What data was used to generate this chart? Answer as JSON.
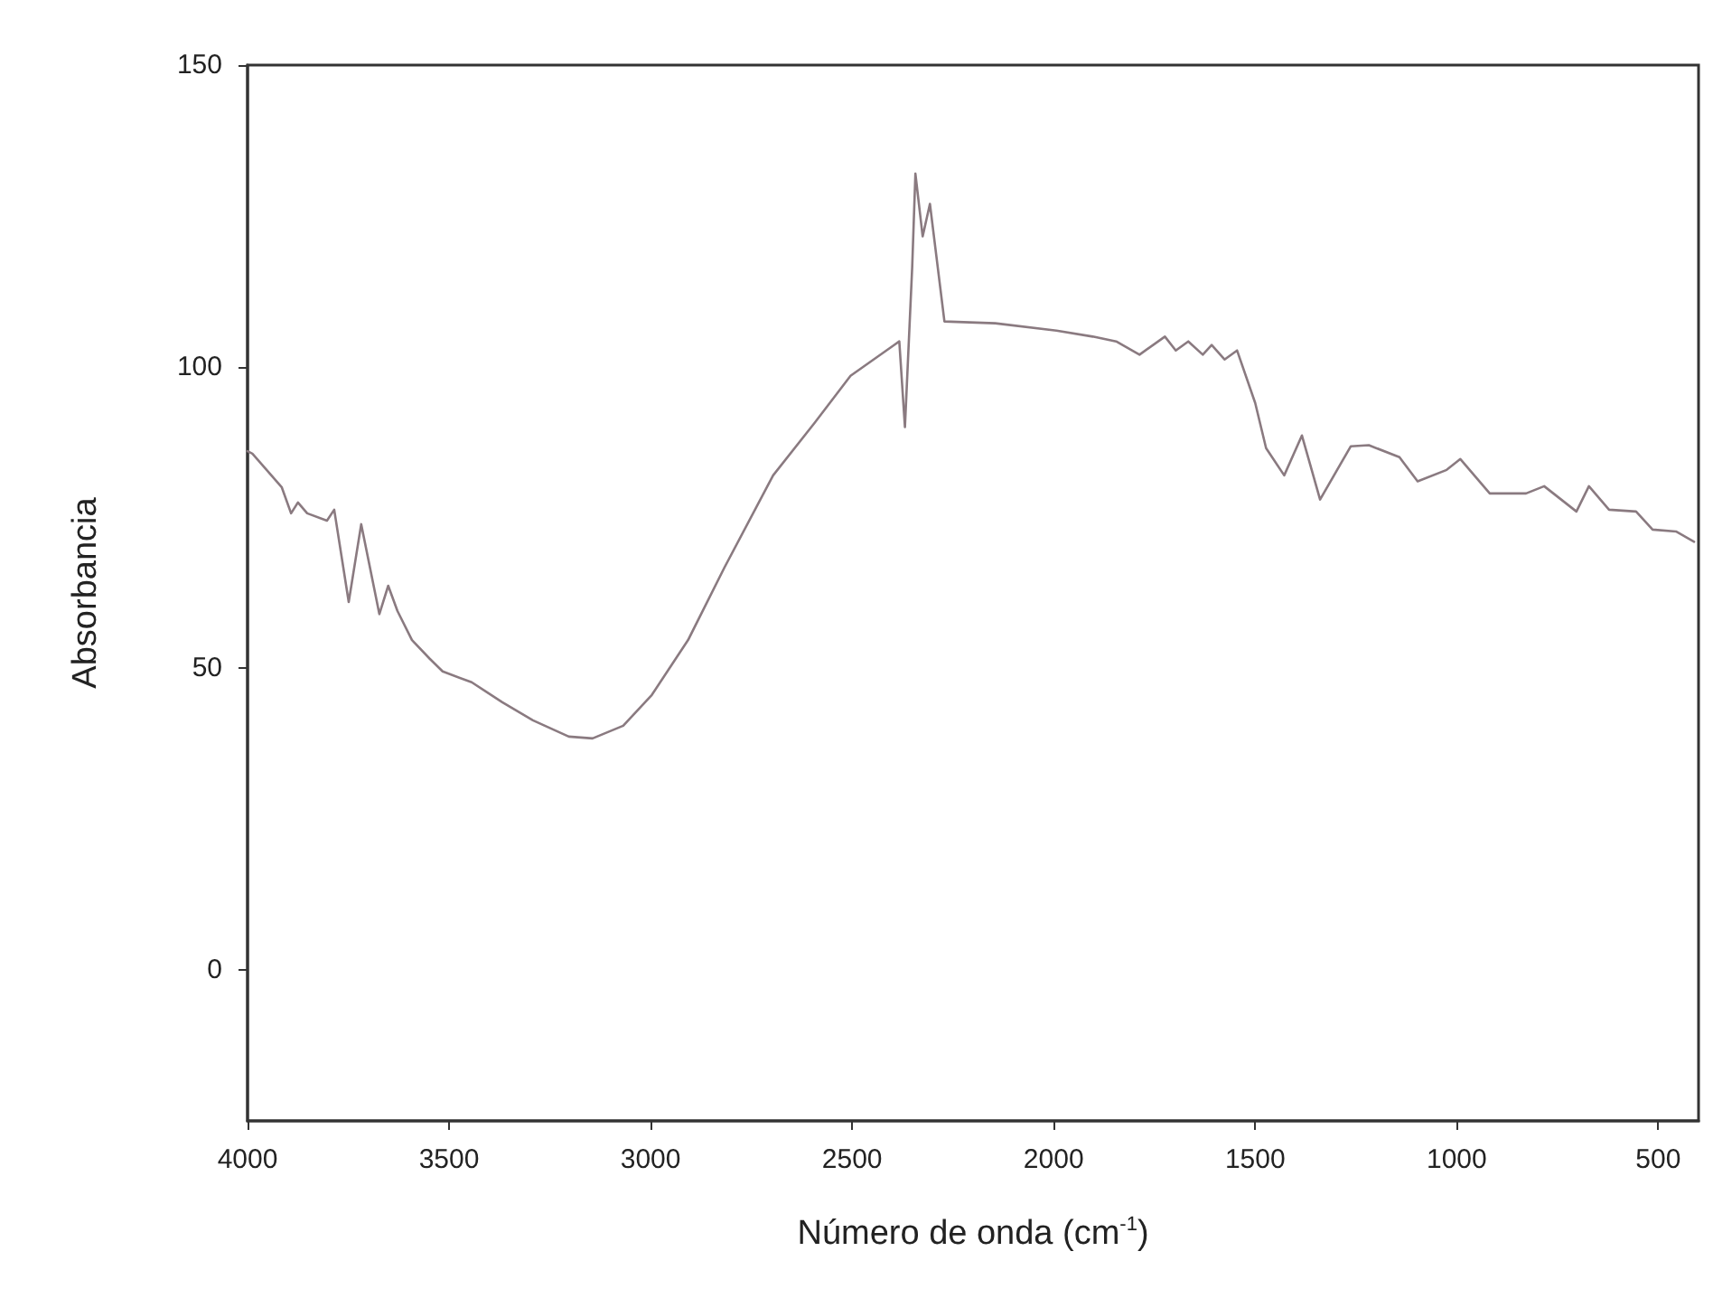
{
  "chart_data": {
    "type": "line",
    "xlabel": "Número de onda (cm$^{-1}$)",
    "ylabel": "Absorbancia",
    "x": [
      4000,
      3988,
      3915,
      3892,
      3875,
      3852,
      3803,
      3785,
      3749,
      3718,
      3673,
      3651,
      3628,
      3592,
      3548,
      3516,
      3444,
      3368,
      3292,
      3203,
      3144,
      3068,
      2997,
      2907,
      2817,
      2696,
      2593,
      2504,
      2396,
      2383,
      2369,
      2351,
      2343,
      2325,
      2307,
      2271,
      2145,
      1993,
      1903,
      1845,
      1787,
      1724,
      1697,
      1666,
      1630,
      1608,
      1576,
      1545,
      1500,
      1473,
      1428,
      1384,
      1339,
      1263,
      1218,
      1142,
      1097,
      1025,
      991,
      918,
      828,
      783,
      703,
      672,
      622,
      555,
      514,
      456,
      411
    ],
    "series": [
      {
        "color": "#8a7a80",
        "values": [
          86,
          85.6,
          80,
          75.7,
          77.5,
          75.7,
          74.5,
          76.3,
          61,
          73.9,
          59,
          63.7,
          59.5,
          54.7,
          51.6,
          49.5,
          47.7,
          44.4,
          41.4,
          38.7,
          38.4,
          40.5,
          45.6,
          54.7,
          66.7,
          82,
          90.7,
          98.5,
          103.6,
          104.2,
          90,
          116.5,
          132,
          121.6,
          127,
          107.5,
          107.2,
          106,
          105,
          104.2,
          102,
          105,
          102.7,
          104.2,
          102,
          103.6,
          101.2,
          102.7,
          94,
          86.5,
          82,
          88.6,
          78,
          86.8,
          87,
          85,
          81,
          82.9,
          84.7,
          79,
          79,
          80.2,
          76,
          80.2,
          76.3,
          76,
          73,
          72.7,
          71
        ]
      }
    ],
    "xlim": [
      4000,
      400
    ],
    "xticks": [
      4000,
      3500,
      3000,
      2500,
      2000,
      1500,
      1000,
      500
    ],
    "ylim": [
      -25,
      150
    ],
    "yticks": [
      0,
      50,
      100,
      150
    ],
    "grid": false,
    "marker": "none",
    "line_style": "solid"
  }
}
